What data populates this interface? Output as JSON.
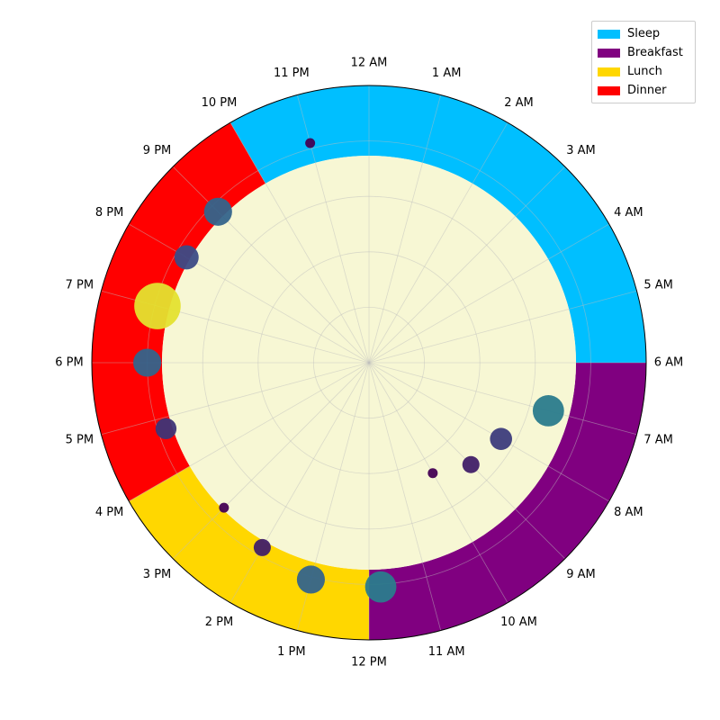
{
  "chart_data": {
    "type": "polar-clock",
    "title": "",
    "hour_labels": [
      "12 AM",
      "1 AM",
      "2 AM",
      "3 AM",
      "4 AM",
      "5 AM",
      "6 AM",
      "7 AM",
      "8 AM",
      "9 AM",
      "10 AM",
      "11 AM",
      "12 PM",
      "1 PM",
      "2 PM",
      "3 PM",
      "4 PM",
      "5 PM",
      "6 PM",
      "7 PM",
      "8 PM",
      "9 PM",
      "10 PM",
      "11 PM"
    ],
    "segments": [
      {
        "name": "Sleep",
        "start_hour": 22,
        "end_hour": 30,
        "color": "#00bfff"
      },
      {
        "name": "Breakfast",
        "start_hour": 6,
        "end_hour": 12,
        "color": "#800080"
      },
      {
        "name": "Lunch",
        "start_hour": 12,
        "end_hour": 16,
        "color": "#ffd700"
      },
      {
        "name": "Dinner",
        "start_hour": 16,
        "end_hour": 22,
        "color": "#ff0000"
      }
    ],
    "inner_fill_color": "#f7f7d4",
    "radial_grid": [
      0.2,
      0.4,
      0.6,
      0.8,
      1.0
    ],
    "points": [
      {
        "hour": 7.0,
        "r": 0.67,
        "size": 1.0
      },
      {
        "hour": 8.0,
        "r": 0.55,
        "size": 0.5
      },
      {
        "hour": 9.0,
        "r": 0.52,
        "size": 0.3
      },
      {
        "hour": 10.0,
        "r": 0.46,
        "size": 0.1
      },
      {
        "hour": 11.8,
        "r": 0.81,
        "size": 1.0
      },
      {
        "hour": 13.0,
        "r": 0.81,
        "size": 0.8
      },
      {
        "hour": 14.0,
        "r": 0.77,
        "size": 0.3
      },
      {
        "hour": 15.0,
        "r": 0.74,
        "size": 0.1
      },
      {
        "hour": 16.8,
        "r": 0.77,
        "size": 0.45
      },
      {
        "hour": 18.0,
        "r": 0.8,
        "size": 0.8
      },
      {
        "hour": 19.0,
        "r": 0.79,
        "size": 2.2
      },
      {
        "hour": 20.0,
        "r": 0.76,
        "size": 0.6
      },
      {
        "hour": 21.0,
        "r": 0.77,
        "size": 0.8
      },
      {
        "hour": 23.0,
        "r": 0.82,
        "size": 0.1
      }
    ],
    "legend": {
      "placement": "top-right",
      "entries": [
        "Sleep",
        "Breakfast",
        "Lunch",
        "Dinner"
      ]
    },
    "grid": true
  }
}
